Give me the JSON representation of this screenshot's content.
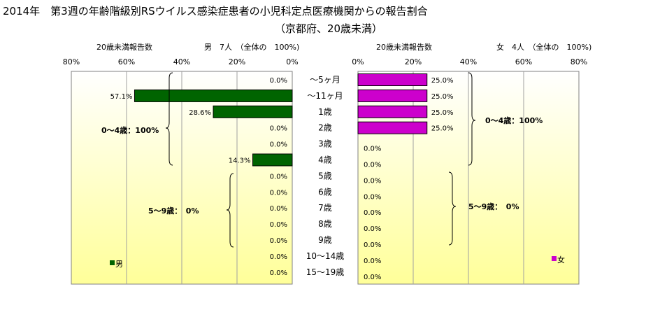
{
  "title": {
    "line1": "2014年　第3週の年齢階級別RSウイルス感染症患者の小児科定点医療機関からの報告割合",
    "line2": "（京都府、20歳未満）"
  },
  "colors": {
    "male_bar": "#006400",
    "female_bar": "#cc00cc",
    "plot_bottom": "#ffff99",
    "plot_top": "#ffffff",
    "grid": "#a0a0a0",
    "border": "#808080"
  },
  "male_panel": {
    "header_left": "20歳未満報告数",
    "header_right": "男　7人　（全体の　100%)",
    "ticks": [
      "80%",
      "60%",
      "40%",
      "20%",
      "0%"
    ],
    "legend": "男"
  },
  "female_panel": {
    "header_left": "20歳未満報告数",
    "header_right": "女　4人　（全体の　100%)",
    "ticks": [
      "0%",
      "20%",
      "40%",
      "60%",
      "80%"
    ],
    "legend": "女"
  },
  "annotations": {
    "male_group1": "0～4歳：100%",
    "male_group2": "5～9歳：　0%",
    "female_group1": "0～4歳：100%",
    "female_group2": "5～9歳：　0%"
  },
  "chart_data": {
    "type": "bar",
    "categories": [
      "～5ヶ月",
      "～11ヶ月",
      "1歳",
      "2歳",
      "3歳",
      "4歳",
      "5歳",
      "6歳",
      "7歳",
      "8歳",
      "9歳",
      "10～14歳",
      "15～19歳"
    ],
    "xlim": [
      0,
      80
    ],
    "series": [
      {
        "name": "男",
        "values": [
          0.0,
          57.1,
          28.6,
          0.0,
          0.0,
          14.3,
          0.0,
          0.0,
          0.0,
          0.0,
          0.0,
          0.0,
          0.0
        ],
        "labels": [
          "0.0%",
          "57.1%",
          "28.6%",
          "0.0%",
          "0.0%",
          "14.3%",
          "0.0%",
          "0.0%",
          "0.0%",
          "0.0%",
          "0.0%",
          "0.0%",
          "0.0%"
        ]
      },
      {
        "name": "女",
        "values": [
          25.0,
          25.0,
          25.0,
          25.0,
          0.0,
          0.0,
          0.0,
          0.0,
          0.0,
          0.0,
          0.0,
          0.0,
          0.0
        ],
        "labels": [
          "25.0%",
          "25.0%",
          "25.0%",
          "25.0%",
          "0.0%",
          "0.0%",
          "0.0%",
          "0.0%",
          "0.0%",
          "0.0%",
          "0.0%",
          "0.0%",
          "0.0%"
        ]
      }
    ]
  }
}
